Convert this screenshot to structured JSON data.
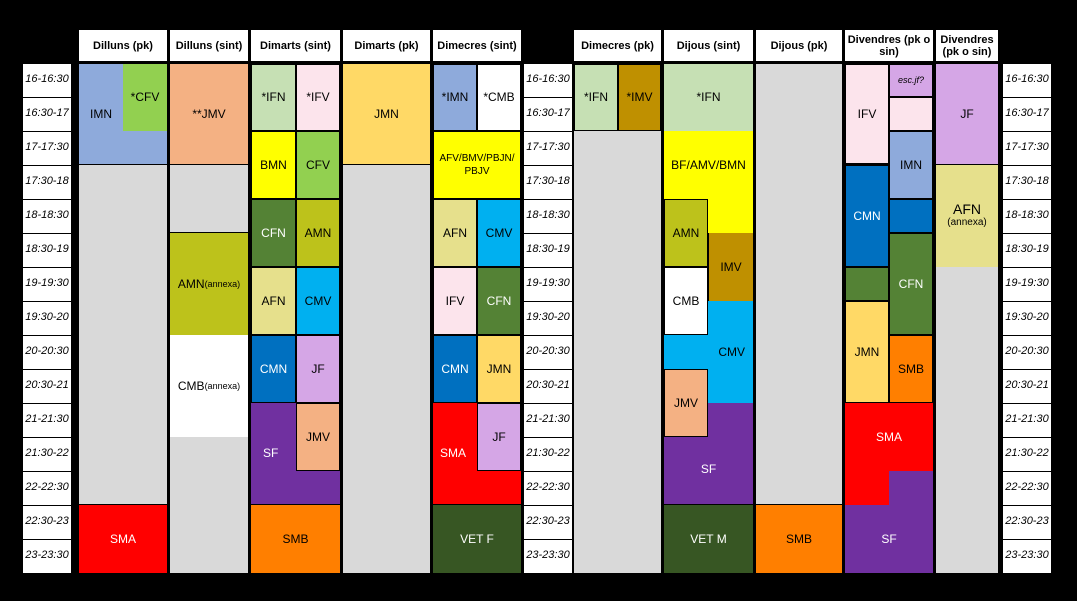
{
  "headers": {
    "dilluns_pk": "Dilluns (pk)",
    "dilluns_sint": "Dilluns (sint)",
    "dimarts_sint": "Dimarts (sint)",
    "dimarts_pk": "Dimarts (pk)",
    "dimecres_sint": "Dimecres (sint)",
    "dimecres_pk": "Dimecres (pk)",
    "dijous_sint": "Dijous (sint)",
    "dijous_pk": "Dijous (pk)",
    "divendres_pk_o_sin_1": "Divendres (pk o sin)",
    "divendres_pk_o_sin_2": "Divendres (pk o sin)"
  },
  "time_slots": [
    "16-16:30",
    "16:30-17",
    "17-17:30",
    "17:30-18",
    "18-18:30",
    "18:30-19",
    "19-19:30",
    "19:30-20",
    "20-20:30",
    "20:30-21",
    "21-21:30",
    "21:30-22",
    "22-22:30",
    "22:30-23",
    "23-23:30"
  ],
  "cells": {
    "imn_mon": "IMN",
    "cfv_mon": "*CFV",
    "sma_mon": "SMA",
    "jmv_mon": "**JMV",
    "amn_mon": "AMN",
    "amn_mon_note": "(annexa)",
    "cmb_mon": "CMB",
    "cmb_mon_note": "(annexa)",
    "ifn_tue": "*IFN",
    "ifv_tue": "*IFV",
    "bmn_tue": "BMN",
    "cfv_tue": "CFV",
    "cfn_tue": "CFN",
    "amn_tue": "AMN",
    "afn_tue": "AFN",
    "cmv_tue": "CMV",
    "cmn_tue": "CMN",
    "jf_tue": "JF",
    "sf_tue": "SF",
    "jmv_tue": "JMV",
    "smb_tue": "SMB",
    "jmn_tue_pk": "JMN",
    "imn_wed": "*IMN",
    "cmb_wed": "*CMB",
    "mix_wed": "AFV/BMV/PBJN/ PBJV",
    "afn_wed": "AFN",
    "cmv_wed": "CMV",
    "ifv_wed": "IFV",
    "cfn_wed": "CFN",
    "cmn_wed": "CMN",
    "jmn_wed": "JMN",
    "sma_wed": "SMA",
    "jf_wed": "JF",
    "vetf_wed": "VET F",
    "ifn_wed_pk": "*IFN",
    "imv_wed_pk": "*IMV",
    "ifn_thu": "*IFN",
    "mix_thu": "BF/AMV/BMN",
    "amn_thu": "AMN",
    "imv_thu": "IMV",
    "cmb_thu": "CMB",
    "cmv_thu": "CMV",
    "jmv_thu": "JMV",
    "sf_thu": "SF",
    "vetm_thu": "VET M",
    "smb_thu_pk": "SMB",
    "ifv_fri": "IFV",
    "escjf_fri": "esc.jf?",
    "imn_fri": "IMN",
    "cmn_fri": "CMN",
    "cfn_fri": "CFN",
    "jmn_fri": "JMN",
    "smb_fri": "SMB",
    "sma_fri": "SMA",
    "sf_fri": "SF",
    "jf_fri2": "JF",
    "afn_fri2": "AFN",
    "afn_fri2_note": "(annexa)"
  },
  "colors": {
    "blue_light": "#8eaadb",
    "green_light": "#92d050",
    "salmon": "#f4b183",
    "mint": "#c6e0b4",
    "pink": "#fce4ec",
    "yellow_light": "#ffd966",
    "yellow": "#ffff00",
    "green_dark": "#548235",
    "olive": "#bdc21b",
    "tan": "#e6e08c",
    "cyan": "#00b0f0",
    "blue": "#0070c0",
    "lilac": "#d5a6e6",
    "purple": "#7030a0",
    "red": "#ff0000",
    "orange": "#ff7f00",
    "dkgreen": "#375623",
    "mustard": "#bf9000",
    "gray": "#d9d9d9"
  }
}
